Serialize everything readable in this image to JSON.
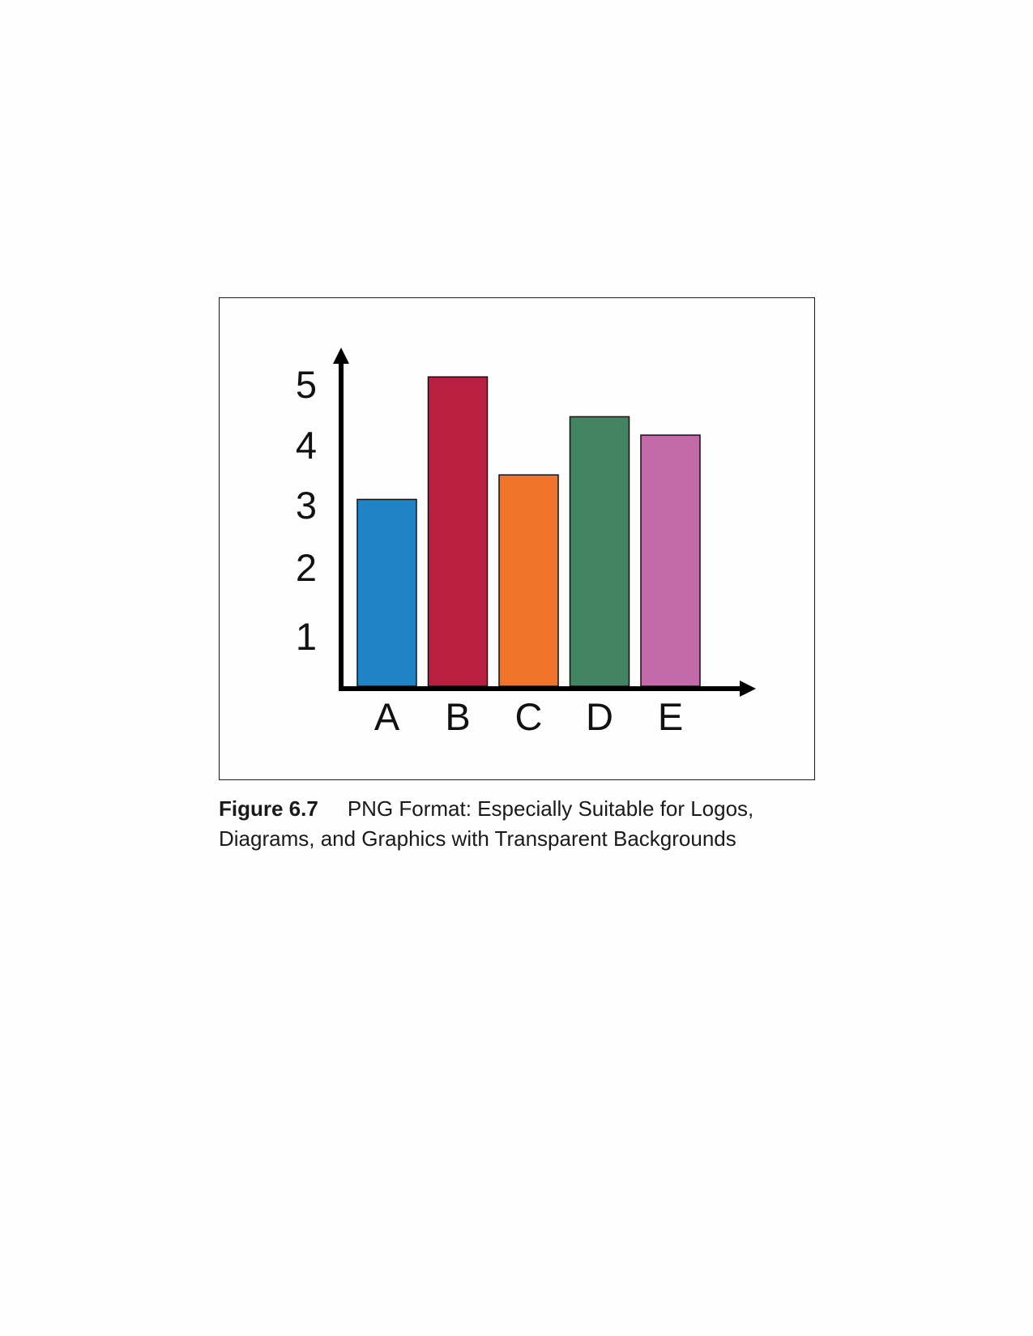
{
  "chart_data": {
    "type": "bar",
    "categories": [
      "A",
      "B",
      "C",
      "D",
      "E"
    ],
    "values": [
      3.05,
      5.05,
      3.45,
      4.4,
      4.1
    ],
    "colors": [
      "#1f84c6",
      "#b91f40",
      "#f2742b",
      "#438562",
      "#c36aaa"
    ],
    "y_ticks": [
      1,
      2,
      3,
      4,
      5
    ],
    "ylim": [
      0,
      5.55
    ],
    "grid": false,
    "title": "",
    "xlabel": "",
    "ylabel": ""
  },
  "caption": {
    "label": "Figure 6.7",
    "text": "PNG Format: Especially Suitable for Logos, Diagrams, and Graphics with Transparent Backgrounds"
  }
}
